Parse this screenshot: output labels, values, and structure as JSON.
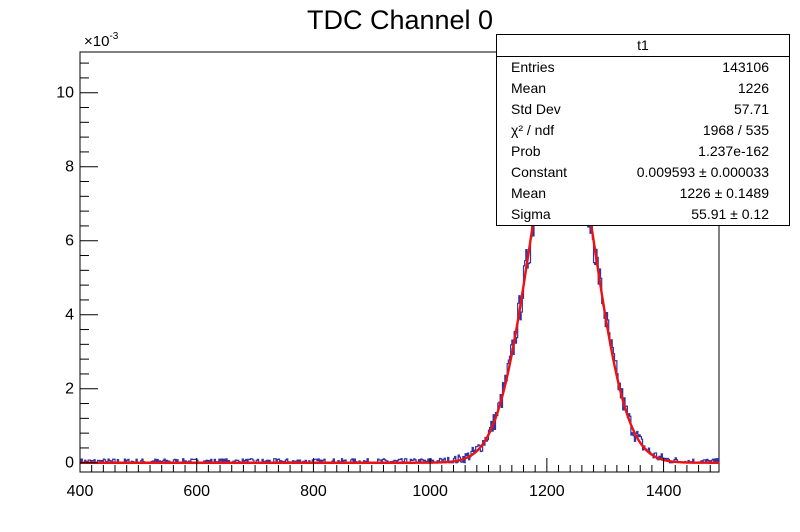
{
  "chart_data": {
    "type": "histogram",
    "title": "TDC Channel 0",
    "y_multiplier": "×10",
    "y_multiplier_exponent": "-3",
    "xlim": [
      400,
      1495
    ],
    "ylim": [
      -0.00025,
      0.0111
    ],
    "x_ticks": [
      400,
      600,
      800,
      1000,
      1200,
      1400
    ],
    "y_ticks": [
      0,
      0.002,
      0.004,
      0.006,
      0.008,
      0.01
    ],
    "y_tick_labels": [
      "0",
      "2",
      "4",
      "6",
      "8",
      "10"
    ],
    "histogram": {
      "color": "#2c35a8",
      "bin_width": 2,
      "x_start": 400,
      "x_end": 1495
    },
    "fit": {
      "function": "gaus",
      "color": "#ee1111",
      "constant": 0.009593,
      "mean": 1226,
      "sigma": 55.91,
      "range": [
        400,
        1495
      ]
    },
    "stats": {
      "title": "t1",
      "rows": [
        {
          "key": "Entries",
          "value": "143106"
        },
        {
          "key": "Mean",
          "value": "1226"
        },
        {
          "key": "Std Dev",
          "value": "57.71"
        },
        {
          "key": "χ² / ndf",
          "value": "1968 / 535"
        },
        {
          "key": "Prob",
          "value": "1.237e-162"
        },
        {
          "key": "Constant",
          "value": "0.009593 ± 0.000033"
        },
        {
          "key": "Mean",
          "value": "1226 ± 0.1489"
        },
        {
          "key": "Sigma",
          "value": "55.91 ± 0.12"
        }
      ]
    }
  }
}
